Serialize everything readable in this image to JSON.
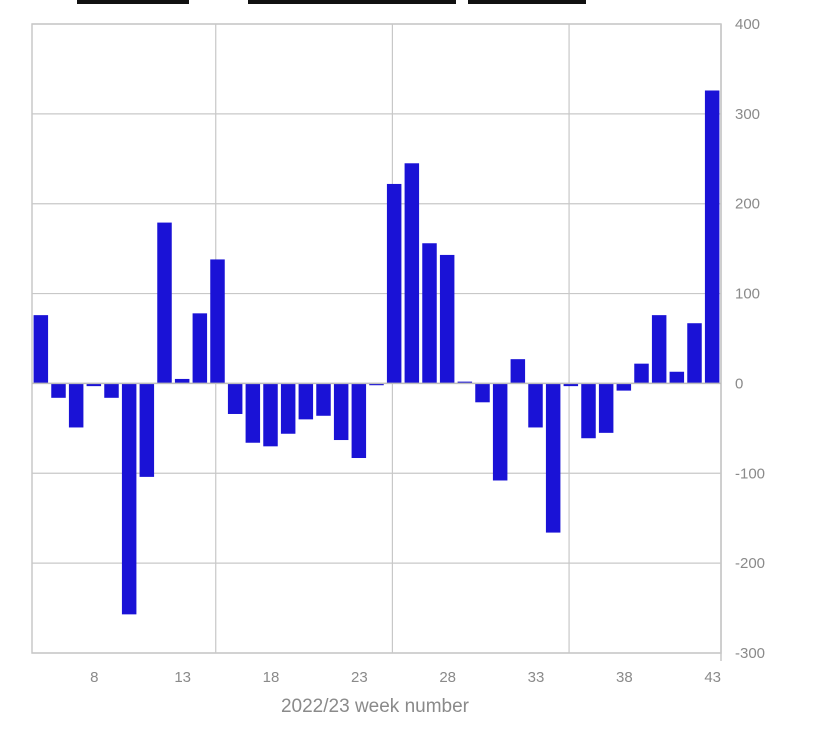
{
  "chart_data": {
    "type": "bar",
    "xlabel": "2022/23 week number",
    "ylabel": "",
    "ylim": [
      -300,
      400
    ],
    "y_ticks": [
      400,
      300,
      200,
      100,
      0,
      -100,
      -200,
      -300
    ],
    "y_tick_labels": [
      "400",
      "300",
      "200",
      "100",
      "0",
      "-100",
      "-200",
      "-300"
    ],
    "x_tick_values": [
      8,
      13,
      18,
      23,
      28,
      33,
      38,
      43
    ],
    "x_tick_labels": [
      "8",
      "13",
      "18",
      "23",
      "28",
      "33",
      "38",
      "43"
    ],
    "grid": true,
    "y_axis_side": "right",
    "bar_color": "#1a12d6",
    "x": [
      5,
      6,
      7,
      8,
      9,
      10,
      11,
      12,
      13,
      14,
      15,
      16,
      17,
      18,
      19,
      20,
      21,
      22,
      23,
      24,
      25,
      26,
      27,
      28,
      29,
      30,
      31,
      32,
      33,
      34,
      35,
      36,
      37,
      38,
      39,
      40,
      41,
      42,
      43
    ],
    "values": [
      76,
      -16,
      -49,
      -3,
      -16,
      -257,
      -104,
      179,
      5,
      78,
      138,
      -34,
      -66,
      -70,
      -56,
      -40,
      -36,
      -63,
      -83,
      -2,
      222,
      245,
      156,
      143,
      2,
      -21,
      -108,
      27,
      -49,
      -166,
      -3,
      -61,
      -55,
      -8,
      22,
      76,
      13,
      67,
      326
    ]
  }
}
